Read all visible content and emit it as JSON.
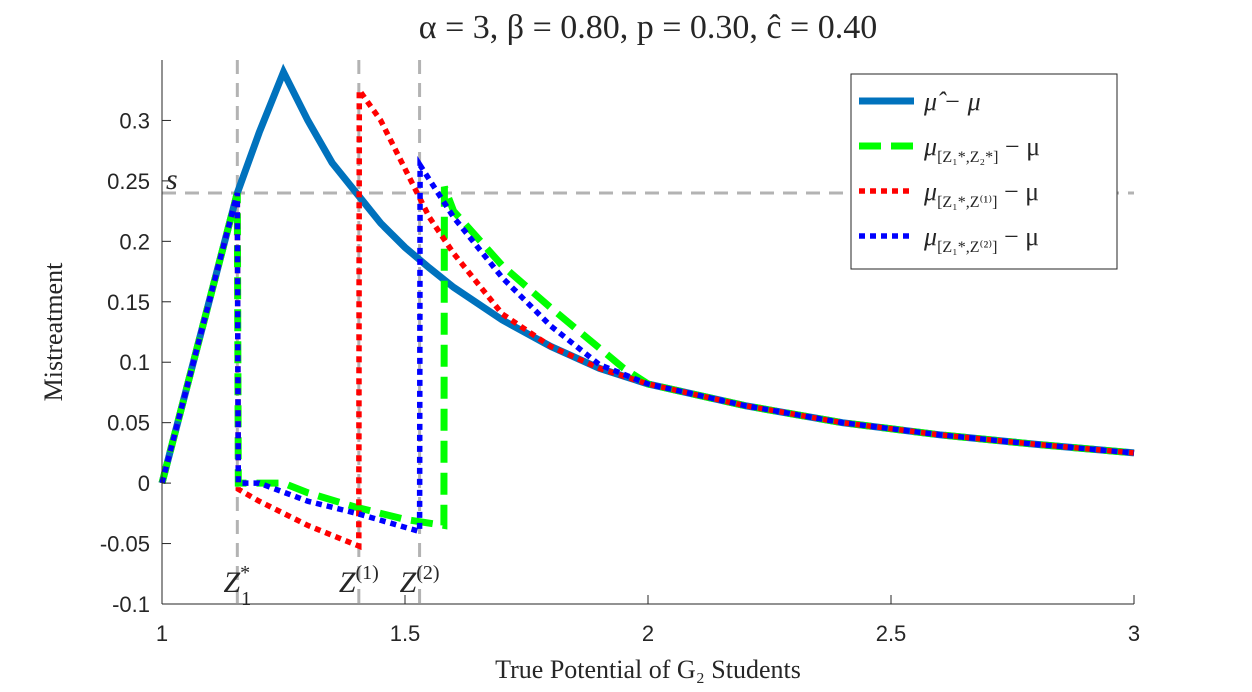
{
  "chart_data": {
    "type": "line",
    "title": "α = 3, β = 0.80, p = 0.30, ĉ = 0.40",
    "xlabel": "True Potential of G₂ Students",
    "ylabel": "Mistreatment",
    "xlim": [
      1,
      3
    ],
    "ylim": [
      -0.1,
      0.35
    ],
    "xticks": [
      1,
      1.5,
      2,
      2.5,
      3
    ],
    "xtick_labels": [
      "1",
      "1.5",
      "2",
      "2.5",
      "3"
    ],
    "yticks": [
      -0.1,
      -0.05,
      0,
      0.05,
      0.1,
      0.15,
      0.2,
      0.25,
      0.3
    ],
    "ytick_labels": [
      "-0.1",
      "-0.05",
      "0",
      "0.05",
      "0.1",
      "0.15",
      "0.2",
      "0.25",
      "0.3"
    ],
    "grid": false,
    "legend_position": "top-right",
    "reference_lines": {
      "s_value": 0.24,
      "s_label": "s",
      "vertical": [
        {
          "x": 1.155,
          "label_main": "Z",
          "label_sup": "*",
          "label_sub": "1"
        },
        {
          "x": 1.405,
          "label_main": "Z",
          "label_sup": "(1)",
          "label_sub": ""
        },
        {
          "x": 1.53,
          "label_main": "Z",
          "label_sup": "(2)",
          "label_sub": ""
        }
      ]
    },
    "series": [
      {
        "name": "μ̂ − μ",
        "legend_main": "μ̂ − μ",
        "legend_sub": "",
        "color": "#0072BD",
        "style": "solid",
        "x": [
          1.0,
          1.155,
          1.2,
          1.25,
          1.3,
          1.35,
          1.4,
          1.45,
          1.5,
          1.55,
          1.6,
          1.7,
          1.8,
          1.9,
          2.0,
          2.2,
          2.4,
          2.6,
          2.8,
          3.0
        ],
        "y": [
          0.0,
          0.24,
          0.29,
          0.34,
          0.3,
          0.265,
          0.24,
          0.215,
          0.195,
          0.178,
          0.162,
          0.135,
          0.113,
          0.095,
          0.082,
          0.064,
          0.05,
          0.04,
          0.032,
          0.025
        ]
      },
      {
        "name": "μ[Z1*,Z2*] − μ",
        "legend_main": "μ",
        "legend_sub": "[Z₁*,Z₂*]",
        "legend_tail": " − μ",
        "color": "#00FF00",
        "style": "dashed",
        "x": [
          1.0,
          1.155,
          1.157,
          1.2,
          1.25,
          1.3,
          1.4,
          1.5,
          1.58,
          1.581,
          1.6,
          1.7,
          1.8,
          1.95,
          2.0,
          2.2,
          2.4,
          2.6,
          2.8,
          3.0
        ],
        "y": [
          0.0,
          0.24,
          0.0,
          0.0,
          0.0,
          -0.008,
          -0.02,
          -0.03,
          -0.035,
          0.245,
          0.225,
          0.18,
          0.145,
          0.095,
          0.082,
          0.064,
          0.05,
          0.04,
          0.032,
          0.025
        ]
      },
      {
        "name": "μ[Z1*,Z(1)] − μ",
        "legend_main": "μ",
        "legend_sub": "[Z₁*,Z⁽¹⁾]",
        "legend_tail": " − μ",
        "color": "#FF0000",
        "style": "dotted",
        "x": [
          1.0,
          1.155,
          1.157,
          1.2,
          1.3,
          1.405,
          1.406,
          1.45,
          1.5,
          1.55,
          1.6,
          1.7,
          1.8,
          1.9,
          2.0,
          2.2,
          2.4,
          2.6,
          2.8,
          3.0
        ],
        "y": [
          0.0,
          0.24,
          -0.005,
          -0.015,
          -0.035,
          -0.052,
          0.325,
          0.3,
          0.26,
          0.22,
          0.19,
          0.14,
          0.113,
          0.095,
          0.082,
          0.064,
          0.05,
          0.04,
          0.032,
          0.025
        ]
      },
      {
        "name": "μ[Z1*,Z(2)] − μ",
        "legend_main": "μ",
        "legend_sub": "[Z₁*,Z⁽²⁾]",
        "legend_tail": " − μ",
        "color": "#0000FF",
        "style": "dotted",
        "x": [
          1.0,
          1.155,
          1.157,
          1.2,
          1.3,
          1.4,
          1.53,
          1.531,
          1.6,
          1.7,
          1.8,
          1.9,
          2.0,
          2.2,
          2.4,
          2.6,
          2.8,
          3.0
        ],
        "y": [
          0.0,
          0.24,
          0.0,
          0.0,
          -0.015,
          -0.025,
          -0.04,
          0.263,
          0.22,
          0.17,
          0.13,
          0.098,
          0.082,
          0.064,
          0.05,
          0.04,
          0.032,
          0.025
        ]
      }
    ]
  }
}
